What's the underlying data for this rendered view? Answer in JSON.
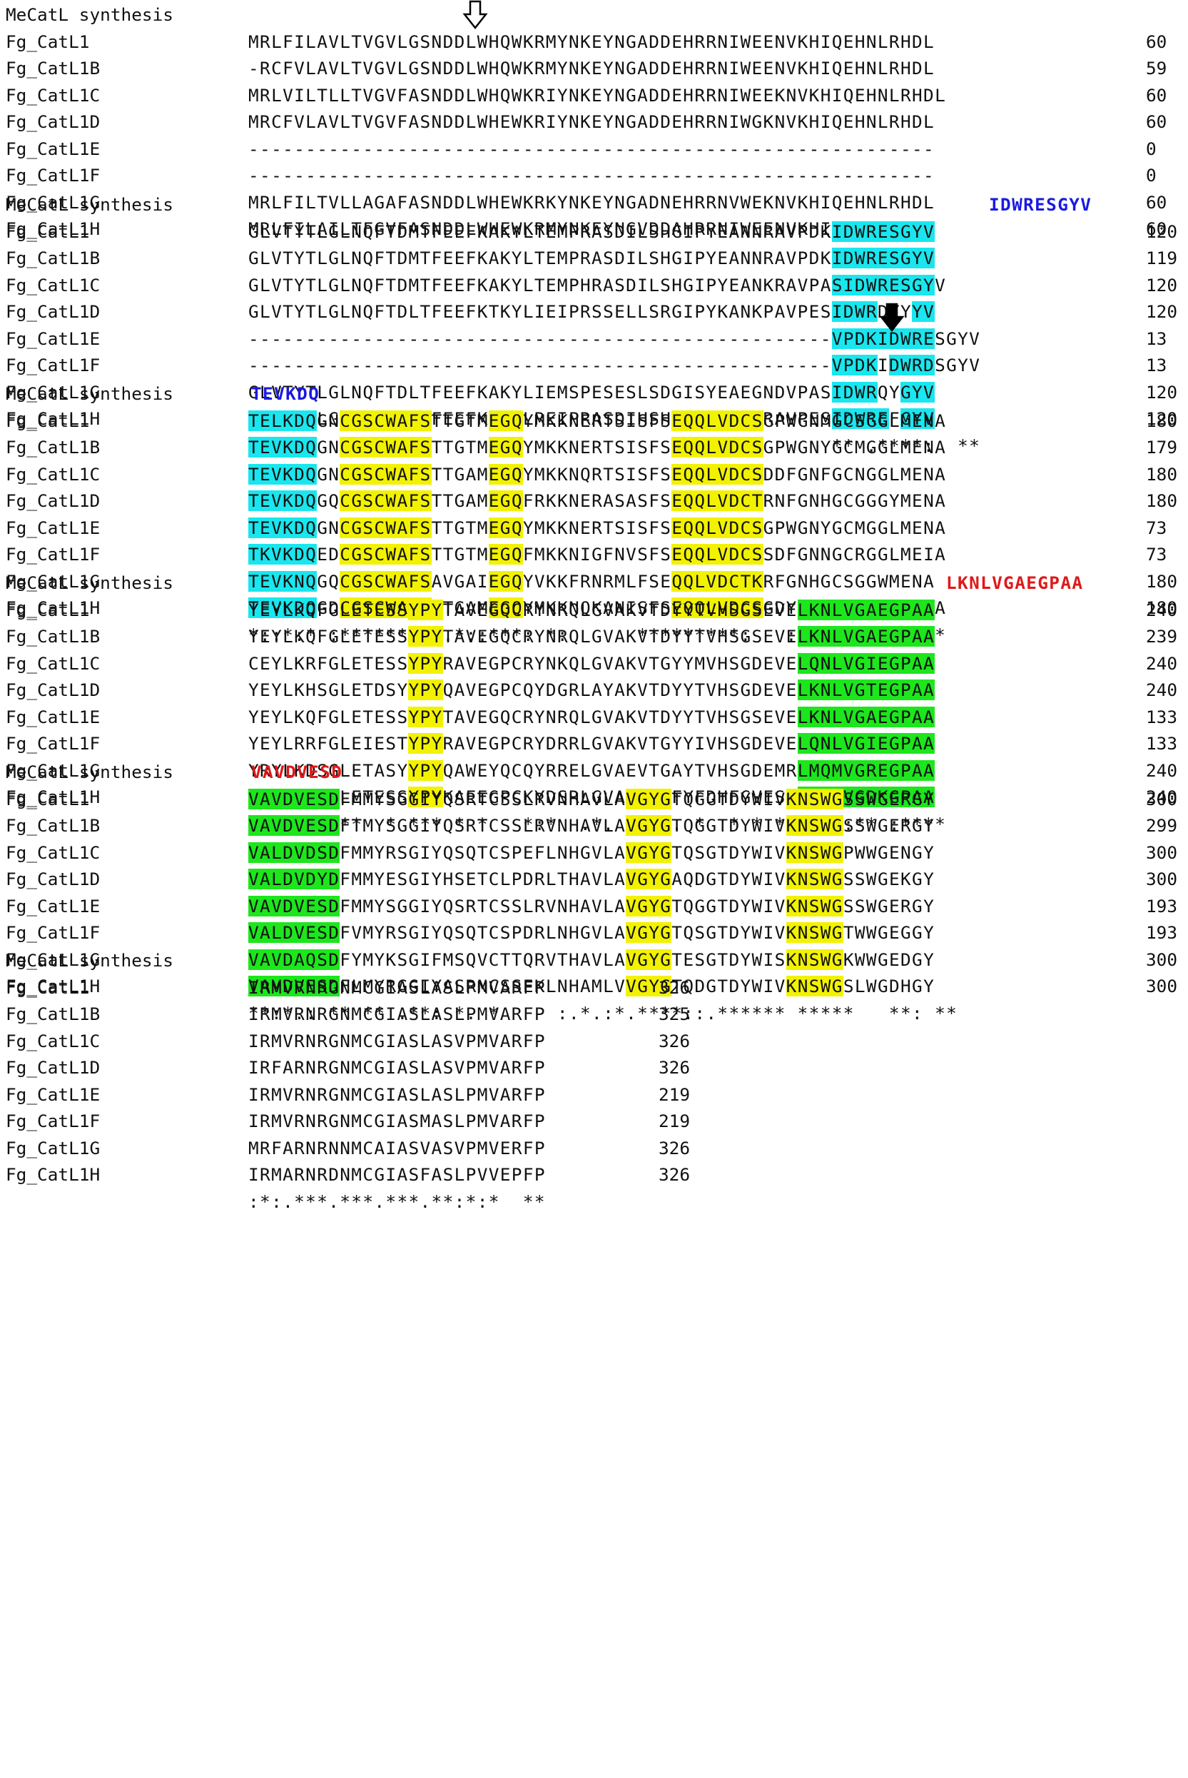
{
  "colors": {
    "cyan": "#19e6ee",
    "yellow": "#f2f200",
    "green": "#1de61d",
    "peptide_blue": "#1a1ae0",
    "peptide_red": "#e01818"
  },
  "icons": [
    "open-down-arrow-icon",
    "filled-down-arrow-icon"
  ],
  "header_label": "MeCatL synthesis",
  "blocks": [
    {
      "peptide": null,
      "rows": [
        {
          "name": "Fg_CatL1",
          "seq": "MRLFILAVLTVGVLGSNDDLWHQWKRMYNKEYNGADDEHRRNIWEENVKHIQEHNLRHDL",
          "num": "60"
        },
        {
          "name": "Fg_CatL1B",
          "seq": "-RCFVLAVLTVGVLGSNDDLWHQWKRMYNKEYNGADDEHRRNIWEENVKHIQEHNLRHDL",
          "num": "59"
        },
        {
          "name": "Fg_CatL1C",
          "seq": "MRLVILTLLTVGVFASNDDLWHQWKRIYNKEYNGADDEHRRNIWEEKNVKHIQEHNLRHDL",
          "num": "60"
        },
        {
          "name": "Fg_CatL1D",
          "seq": "MRCFVLAVLTVGVFASNDDLWHEWKRIYNKEYNGADDEHRRNIWGKNVKHIQEHNLRHDL",
          "num": "60"
        },
        {
          "name": "Fg_CatL1E",
          "seq": "------------------------------------------------------------",
          "num": "0"
        },
        {
          "name": "Fg_CatL1F",
          "seq": "------------------------------------------------------------",
          "num": "0"
        },
        {
          "name": "Fg_CatL1G",
          "seq": "MRLFILTVLLAGAFASNDDLWHEWKRKYNKEYNGADNEHRRNVWEKNVKHIQEHNLRHDL",
          "num": "60"
        },
        {
          "name": "Fg_CatL1H",
          "seq": "MRLFILAILTFGVFASNDDLWHEWKRMYNKEYNGVDDAHRRNIWEENVKHIQEHNIRHDL",
          "num": "60"
        }
      ],
      "consensus": ""
    },
    {
      "peptide": "IDWRESGYV",
      "rows": [
        {
          "name": "Fg_CatL1",
          "seq": "GLVTYTLGLNQFTDMTFEEFKAKYLTEMPRASDILSHGIPYEANNRAVPDKIDWRESGYV",
          "num": "120"
        },
        {
          "name": "Fg_CatL1B",
          "seq": "GLVTYTLGLNQFTDMTFEEFKAKYLTEMPRASDILSHGIPYEANNRAVPDKIDWRESGYV",
          "num": "119"
        },
        {
          "name": "Fg_CatL1C",
          "seq": "GLVTYTLGLNQFTDMTFEEFKAKYLTEMPHRASDILSHGIPYEANKRAVPASIDWRESGYV",
          "num": "120"
        },
        {
          "name": "Fg_CatL1D",
          "seq": "GLVTYTLGLNQFTDLTFEEFKTKYLIEIPRSSELLSRGIPYKANKPAVPESIDWRDYYYV",
          "num": "120"
        },
        {
          "name": "Fg_CatL1E",
          "seq": "---------------------------------------------------VPDKIDWRESGYV",
          "num": "13"
        },
        {
          "name": "Fg_CatL1F",
          "seq": "---------------------------------------------------VPDKIDWRDSGYV",
          "num": "13"
        },
        {
          "name": "Fg_CatL1G",
          "seq": "GLVTYTLGLNQFTDLTFEEFKAKYLIEMSPESESLSDGISYEAEGNDVPASIDWRQYGYV",
          "num": "120"
        },
        {
          "name": "Fg_CatL1H",
          "seq": "GLVTYTLGLNQFTDMTFEEFKAKYLREIPRASDIHSHGIPYEANDRAVPESIDWREFGYV",
          "num": "120"
        }
      ],
      "consensus": "                                                   ** .****:  **"
    },
    {
      "peptide": "TEVKDQ",
      "rows": [
        {
          "name": "Fg_CatL1",
          "seq": "TELKDQGNCGSCWAFSTTGTMEGQYMKKNERTSISFSEQQLVDCSGPWGNMGCSGGLMENA",
          "num": "180"
        },
        {
          "name": "Fg_CatL1B",
          "seq": "TEVKDQGNCGSCWAFSTTGTMEGQYMKKNERTSISFSEQQLVDCSGPWGNYGCMGGLMENA",
          "num": "179"
        },
        {
          "name": "Fg_CatL1C",
          "seq": "TEVKDQGNCGSCWAFSTTGAMEGQYMKKNQRTSISFSEQQLVDCSDDFGNFGCNGGLMENA",
          "num": "180"
        },
        {
          "name": "Fg_CatL1D",
          "seq": "TEVKDQGQCGSCWAFSTTGAMEGQFRKKNERASASFSEQQLVDCTRNFGNHGCGGGYMENA",
          "num": "180"
        },
        {
          "name": "Fg_CatL1E",
          "seq": "TEVKDQGNCGSCWAFSTTGTMEGQYMKKNERTSISFSEQQLVDCSGPWGNYGCMGGLMENA",
          "num": "73"
        },
        {
          "name": "Fg_CatL1F",
          "seq": "TKVKDQEDCGSCWAFSTTGTMEGQFMKKNIGFNVSFSEQQLVDCSSDFGNNGCRGGLMEIA",
          "num": "73"
        },
        {
          "name": "Fg_CatL1G",
          "seq": "TEVKNQGQCGSCWAFSAVGAIEGQYVKKFRNRMLFSEQQLVDCTKRFGNHGCSGGWMENA",
          "num": "180"
        },
        {
          "name": "Fg_CatL1H",
          "seq": "TEVKDQGDCGSCWAFSATGAMEGQYMKKNQKANISFSEQQLVDCSGDYGNRGCSGGFMEHA",
          "num": "180"
        }
      ],
      "consensus": "*::*:* :********:.*::***: *:      *********:   :** ** ** ** *"
    },
    {
      "peptide": "LKNLVGAEGPAA",
      "rows": [
        {
          "name": "Fg_CatL1",
          "seq": "YEYLKQFGLETESSYPYTAVEGQCRYNRQLGVAKVTDYYTVHSGSEVELKNLVGAEGPAA",
          "num": "240"
        },
        {
          "name": "Fg_CatL1B",
          "seq": "YEYLKQFGLETESSYPYTAVEGQCRYNRQLGVAKVTDYYTVHSGSEVELKNLVGAEGPAA",
          "num": "239"
        },
        {
          "name": "Fg_CatL1C",
          "seq": "CEYLKRFGLETESSYPYRAVEGPCRYNKQLGVAKVTGYYMVHSGDEVELQNLVGIEGPAA",
          "num": "240"
        },
        {
          "name": "Fg_CatL1D",
          "seq": "YEYLKHSGLETDSYYPYQAVEGPCQYDGRLAYAKVTDYYTVHSGDEVELKNLVGTEGPAA",
          "num": "240"
        },
        {
          "name": "Fg_CatL1E",
          "seq": "YEYLKQFGLETESSYPYTAVEGQCRYNRQLGVAKVTDYYTVHSGSEVELKNLVGAEGPAA",
          "num": "133"
        },
        {
          "name": "Fg_CatL1F",
          "seq": "YEYLRRFGLEIESTYPYRAVEGPCRYDRRLGVAKVTGYYIVHSGDEVELQNLVGIEGPAA",
          "num": "133"
        },
        {
          "name": "Fg_CatL1G",
          "seq": "YRYLKDSGLETASYYPYQAWEYQCQYRRELGVAEVTGAYTVHSGDEMRLMQMVGREGPAA",
          "num": "240"
        },
        {
          "name": "Fg_CatL1H",
          "seq": "YEYLYEVGLETESSYPYKAEEGPCKYDSRLGVAKVNGFYFDHFGVESKLAHLVGDKGPAA",
          "num": "240"
        }
      ],
      "consensus": " .**   ***  * *** * *   *:*  .*. *:*.. *  * * * .* ::** :****"
    },
    {
      "peptide": "VAVDVESD",
      "rows": [
        {
          "name": "Fg_CatL1",
          "seq": "VAVDVESDFMMYSGGIYQSRTCSSLRVNHAVLAVGYGTQGGTDYWIVKNSWGSSWGERGY",
          "num": "300"
        },
        {
          "name": "Fg_CatL1B",
          "seq": "VAVDVESDFTMYSGGIYQSRTCSSLRVNHAVLAVGYGTQGGTDYWIVKNSWGSSWGERGY",
          "num": "299"
        },
        {
          "name": "Fg_CatL1C",
          "seq": "VALDVDSDFMMYRSGIYQSQTCSPEFLNHGVLAVGYGTQSGTDYWIVKNSWGPWWGENGY",
          "num": "300"
        },
        {
          "name": "Fg_CatL1D",
          "seq": "VALDVDYDFMMYESGIYHSETCLPDRLTHAVLAVGYGAQDGTDYWIVKNSWGSSWGEKGY",
          "num": "300"
        },
        {
          "name": "Fg_CatL1E",
          "seq": "VAVDVESDFMMYSGGIYQSRTCSSLRVNHAVLAVGYGTQGGTDYWIVKNSWGSSWGERGY",
          "num": "193"
        },
        {
          "name": "Fg_CatL1F",
          "seq": "VALDVESDFVMYRSGIYQSQTCSPDRLNHGVLAVGYGTQSGTDYWIVKNSWGTWWGEGGY",
          "num": "193"
        },
        {
          "name": "Fg_CatL1G",
          "seq": "VAVDAQSDFYMYKSGIFMSQVCTTQRVTHAVLAVGYGTESGTDYWISKNSWGKWWGEDGY",
          "num": "300"
        },
        {
          "name": "Fg_CatL1H",
          "seq": "VAVDVESDFLMYRGGIYASRNCSSEKLNHAMLVVGYGTQDGTDYWIVKNSWGSLWGDHGY",
          "num": "300"
        }
      ],
      "consensus": "**:*.: ** ** .**: *. *     :.*.:*.****::.****** *****   **: **"
    },
    {
      "peptide": null,
      "rows": [
        {
          "name": "Fg_CatL1",
          "seq": "IRMVRNRGNMCGIASLASLPMVARFP",
          "num": "326"
        },
        {
          "name": "Fg_CatL1B",
          "seq": "IRMVRNRGNMCGIASLASLPMVARFP",
          "num": "325"
        },
        {
          "name": "Fg_CatL1C",
          "seq": "IRMVRNRGNMCGIASLASVPMVARFP",
          "num": "326"
        },
        {
          "name": "Fg_CatL1D",
          "seq": "IRFARNRGNMCGIASLASVPMVARFP",
          "num": "326"
        },
        {
          "name": "Fg_CatL1E",
          "seq": "IRMVRNRGNMCGIASLASLPMVARFP",
          "num": "219"
        },
        {
          "name": "Fg_CatL1F",
          "seq": "IRMVRNRGNMCGIASMASLPMVARFP",
          "num": "219"
        },
        {
          "name": "Fg_CatL1G",
          "seq": "MRFARNRNNMCAIASVASVPMVERFP",
          "num": "326"
        },
        {
          "name": "Fg_CatL1H",
          "seq": "IRMARNRDNMCGIASFASLPVVEPFP",
          "num": "326"
        }
      ],
      "consensus": ":*:.***.***.***.**:*:*  **"
    }
  ]
}
